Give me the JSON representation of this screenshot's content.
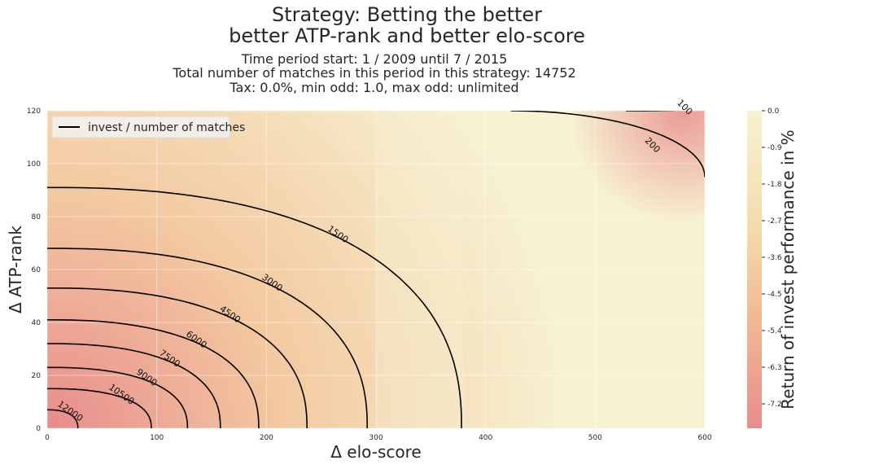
{
  "title_line1": "Strategy: Betting the better",
  "title_line2": "better ATP-rank and better elo-score",
  "subtitle_line1": "Time period start: 1 / 2009 until 7 / 2015",
  "subtitle_line2": "Total number of matches in this period in this strategy: 14752",
  "subtitle_line3": "Tax: 0.0%, min odd: 1.0, max odd: unlimited",
  "colors": {
    "low": "#e88c8c",
    "mid": "#f3c9a0",
    "high": "#f7f2d2",
    "contour": "#000000"
  },
  "chart_data": {
    "type": "heatmap",
    "xlabel": "Δ elo-score",
    "ylabel": "Δ ATP-rank",
    "xlim": [
      0,
      600
    ],
    "ylim": [
      0,
      120
    ],
    "xticks": [
      0,
      100,
      200,
      300,
      400,
      500,
      600
    ],
    "yticks": [
      0,
      20,
      40,
      60,
      80,
      100,
      120
    ],
    "grid": true,
    "colorbar": {
      "label": "Return of invest performance in %",
      "range": [
        -7.8,
        0.0
      ],
      "ticks": [
        "0.0",
        "-0.9",
        "-1.8",
        "-2.7",
        "-3.6",
        "-4.5",
        "-5.4",
        "-6.3",
        "-7.2"
      ],
      "tick_values": [
        0.0,
        -0.9,
        -1.8,
        -2.7,
        -3.6,
        -4.5,
        -5.4,
        -6.3,
        -7.2
      ]
    },
    "legend": {
      "label": "invest / number of matches",
      "position": "top-left"
    },
    "contours": [
      {
        "level": "12000",
        "x_intercept": 28,
        "y_intercept": 7
      },
      {
        "level": "10500",
        "x_intercept": 95,
        "y_intercept": 15
      },
      {
        "level": "9000",
        "x_intercept": 128,
        "y_intercept": 23
      },
      {
        "level": "7500",
        "x_intercept": 158,
        "y_intercept": 32
      },
      {
        "level": "6000",
        "x_intercept": 193,
        "y_intercept": 41
      },
      {
        "level": "4500",
        "x_intercept": 237,
        "y_intercept": 53
      },
      {
        "level": "3000",
        "x_intercept": 292,
        "y_intercept": 68
      },
      {
        "level": "1500",
        "x_intercept": 378,
        "y_intercept": 91
      }
    ],
    "corner_contours": [
      {
        "level": "200",
        "top_x": 423,
        "right_y": 95
      },
      {
        "level": "100",
        "top_x": 528,
        "right_y": 121
      }
    ]
  }
}
